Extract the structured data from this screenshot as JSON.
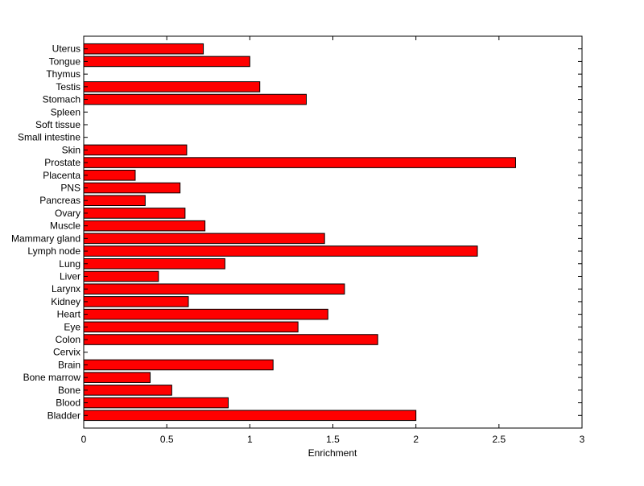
{
  "chart_data": {
    "type": "bar",
    "orientation": "horizontal",
    "xlabel": "Enrichment",
    "ylabel": "",
    "title": "",
    "xlim": [
      0,
      3
    ],
    "xticks": [
      "0",
      "0.5",
      "1",
      "1.5",
      "2",
      "2.5",
      "3"
    ],
    "grid": false,
    "bar_color": "#ff0000",
    "bar_edge_color": "#000000",
    "categories": [
      "Bladder",
      "Blood",
      "Bone",
      "Bone marrow",
      "Brain",
      "Cervix",
      "Colon",
      "Eye",
      "Heart",
      "Kidney",
      "Larynx",
      "Liver",
      "Lung",
      "Lymph node",
      "Mammary gland",
      "Muscle",
      "Ovary",
      "Pancreas",
      "PNS",
      "Placenta",
      "Prostate",
      "Skin",
      "Small intestine",
      "Soft tissue",
      "Spleen",
      "Stomach",
      "Testis",
      "Thymus",
      "Tongue",
      "Uterus"
    ],
    "values": [
      2.0,
      0.87,
      0.53,
      0.4,
      1.14,
      0.0,
      1.77,
      1.29,
      1.47,
      0.63,
      1.57,
      0.45,
      0.85,
      2.37,
      1.45,
      0.73,
      0.61,
      0.37,
      0.58,
      0.31,
      2.6,
      0.62,
      0.0,
      0.0,
      0.0,
      1.34,
      1.06,
      0.0,
      1.0,
      0.72
    ]
  }
}
